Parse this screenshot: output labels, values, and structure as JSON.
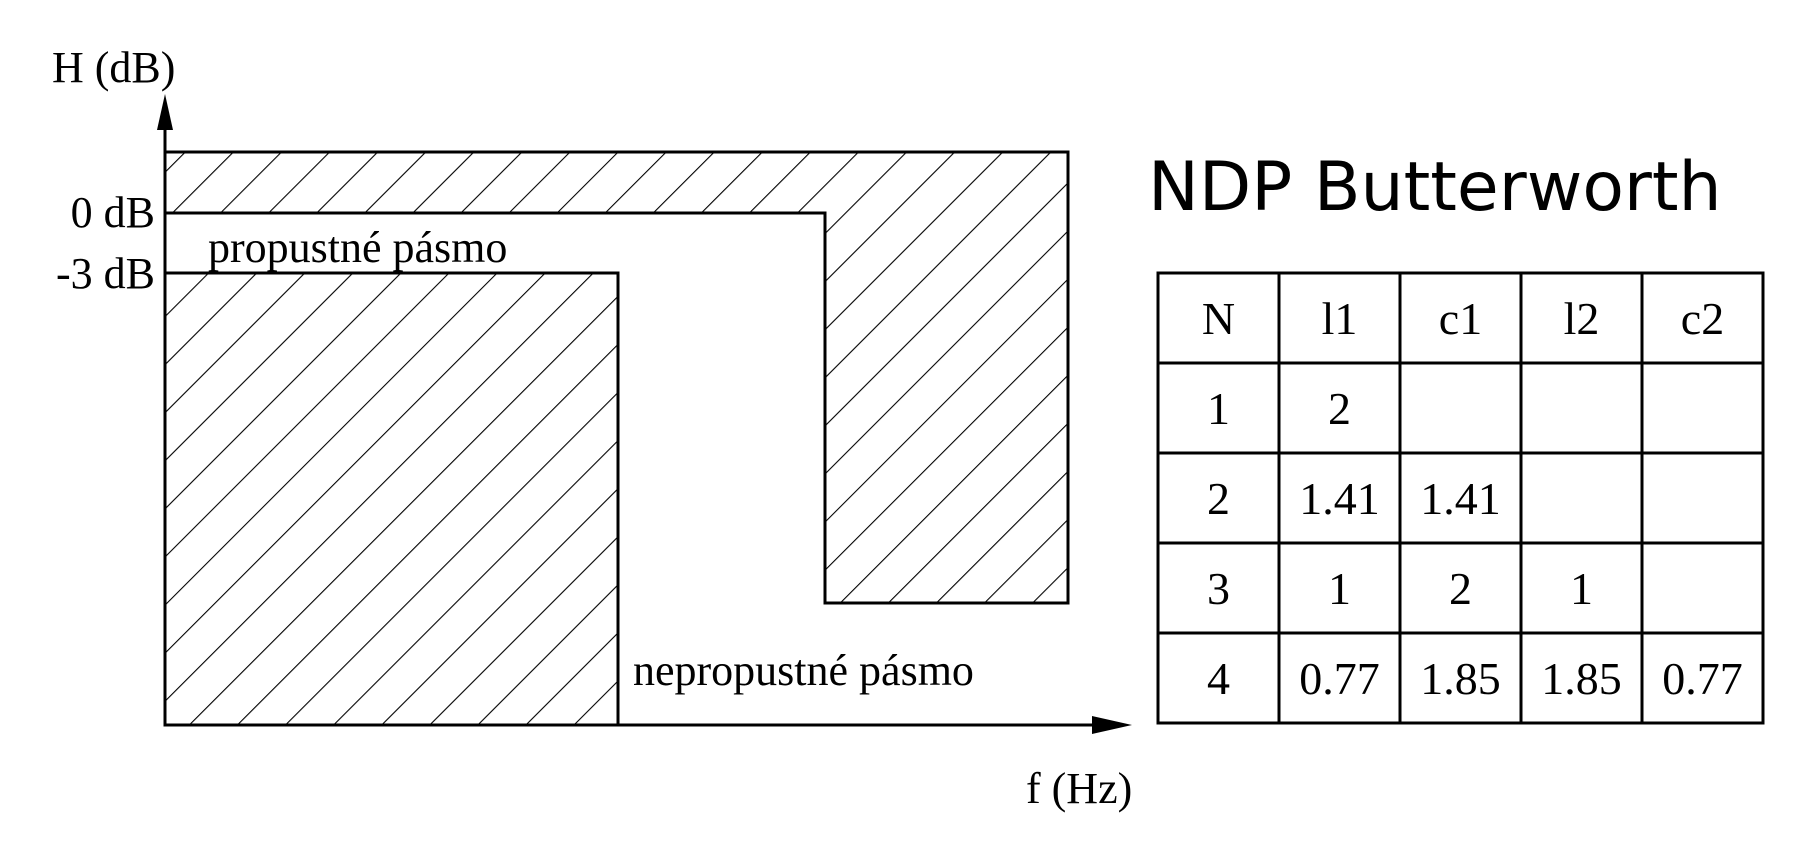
{
  "diagram": {
    "y_axis_label": "H (dB)",
    "x_axis_label": "f (Hz)",
    "level_0db_label": "0 dB",
    "level_3db_label": "-3 dB",
    "passband_label": "propustné pásmo",
    "stopband_label": "nepropustné pásmo"
  },
  "table": {
    "title": "NDP Butterworth",
    "headers": [
      "N",
      "l1",
      "c1",
      "l2",
      "c2"
    ],
    "rows": [
      [
        "1",
        "2",
        "",
        "",
        ""
      ],
      [
        "2",
        "1.41",
        "1.41",
        "",
        ""
      ],
      [
        "3",
        "1",
        "2",
        "1",
        ""
      ],
      [
        "4",
        "0.77",
        "1.85",
        "1.85",
        "0.77"
      ]
    ]
  },
  "colors": {
    "ink": "#000000",
    "background": "#ffffff"
  }
}
